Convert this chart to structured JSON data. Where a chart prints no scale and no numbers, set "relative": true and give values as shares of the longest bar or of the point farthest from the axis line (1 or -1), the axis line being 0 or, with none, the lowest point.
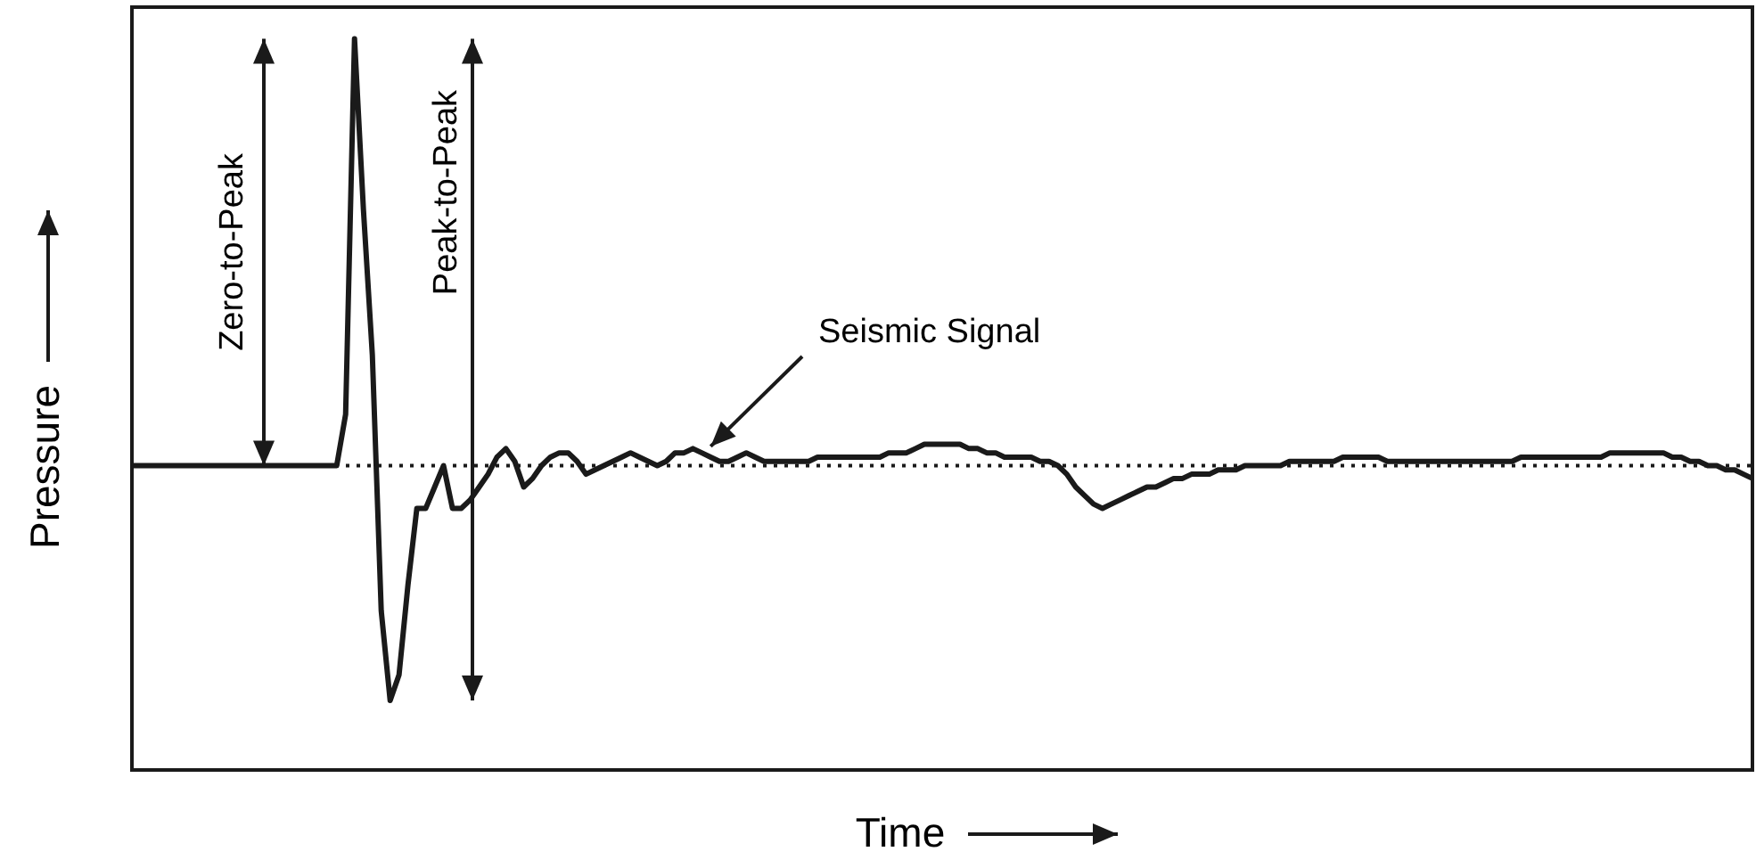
{
  "chart_data": {
    "type": "line",
    "relative": true,
    "xlabel": "Time",
    "ylabel": "Pressure",
    "annotations": [
      "Zero-to-Peak",
      "Peak-to-Peak",
      "Seismic Signal"
    ],
    "ref_lines": [
      {
        "axis": "y",
        "value": 0,
        "line_style": "dotted",
        "color": "#1a1a1a"
      }
    ],
    "categories": [
      null,
      null,
      null,
      null,
      null,
      null,
      null,
      null,
      null,
      null,
      null,
      null,
      null,
      null,
      null,
      null,
      null,
      null,
      null,
      null,
      null,
      null,
      null,
      null,
      null,
      null,
      null,
      null,
      null,
      null,
      null,
      null,
      null,
      null,
      null,
      null,
      null,
      null,
      null,
      null,
      null,
      null,
      null,
      null,
      null,
      null,
      null,
      null,
      null,
      null,
      null,
      null,
      null,
      null,
      null,
      null,
      null,
      null,
      null,
      null,
      null,
      null,
      null,
      null,
      null,
      null,
      null,
      null,
      null,
      null,
      null,
      null,
      null,
      null,
      null,
      null,
      null,
      null,
      null,
      null,
      null,
      null,
      null,
      null,
      null,
      null,
      null,
      null,
      null,
      null,
      null,
      null,
      null,
      null,
      null,
      null,
      null,
      null,
      null,
      null,
      null,
      null,
      null,
      null,
      null,
      null,
      null,
      null,
      null,
      null,
      null,
      null,
      null,
      null,
      null,
      null,
      null,
      null,
      null,
      null,
      null,
      null,
      null,
      null,
      null,
      null,
      null,
      null,
      null,
      null,
      null,
      null,
      null,
      null,
      null,
      null,
      null,
      null,
      null,
      null,
      null,
      null,
      null,
      null,
      null,
      null,
      null,
      null,
      null,
      null,
      null,
      null,
      null,
      null,
      null,
      null,
      null,
      null,
      null,
      null,
      null,
      null,
      null,
      null,
      null,
      null,
      null,
      null,
      null,
      null,
      null,
      null,
      null,
      null,
      null,
      null,
      null,
      null,
      null,
      null,
      null,
      null,
      null
    ],
    "series": [
      {
        "color": "#1a1a1a",
        "values": [
          0,
          0,
          0,
          0,
          0,
          0,
          0,
          0,
          0,
          0,
          0,
          0,
          0,
          0,
          0,
          0,
          0,
          0,
          0,
          0,
          0,
          0,
          0,
          0,
          0.12,
          1,
          0.6,
          0.26,
          -0.34,
          -0.55,
          -0.49,
          -0.28,
          -0.1,
          -0.1,
          -0.05,
          0,
          -0.1,
          -0.1,
          -0.08,
          -0.05,
          -0.02,
          0.02,
          0.04,
          0.01,
          -0.05,
          -0.03,
          0,
          0.02,
          0.03,
          0.03,
          0.01,
          -0.02,
          -0.01,
          0,
          0.01,
          0.02,
          0.03,
          0.02,
          0.01,
          0,
          0.01,
          0.03,
          0.03,
          0.04,
          0.03,
          0.02,
          0.01,
          0.01,
          0.02,
          0.03,
          0.02,
          0.01,
          0.01,
          0.01,
          0.01,
          0.01,
          0.01,
          0.02,
          0.02,
          0.02,
          0.02,
          0.02,
          0.02,
          0.02,
          0.02,
          0.03,
          0.03,
          0.03,
          0.04,
          0.05,
          0.05,
          0.05,
          0.05,
          0.05,
          0.04,
          0.04,
          0.03,
          0.03,
          0.02,
          0.02,
          0.02,
          0.02,
          0.01,
          0.01,
          0,
          -0.02,
          -0.05,
          -0.07,
          -0.09,
          -0.1,
          -0.09,
          -0.08,
          -0.07,
          -0.06,
          -0.05,
          -0.05,
          -0.04,
          -0.03,
          -0.03,
          -0.02,
          -0.02,
          -0.02,
          -0.01,
          -0.01,
          -0.01,
          0,
          0,
          0,
          0,
          0,
          0.01,
          0.01,
          0.01,
          0.01,
          0.01,
          0.01,
          0.02,
          0.02,
          0.02,
          0.02,
          0.02,
          0.01,
          0.01,
          0.01,
          0.01,
          0.01,
          0.01,
          0.01,
          0.01,
          0.01,
          0.01,
          0.01,
          0.01,
          0.01,
          0.01,
          0.01,
          0.02,
          0.02,
          0.02,
          0.02,
          0.02,
          0.02,
          0.02,
          0.02,
          0.02,
          0.02,
          0.03,
          0.03,
          0.03,
          0.03,
          0.03,
          0.03,
          0.03,
          0.02,
          0.02,
          0.01,
          0.01,
          0,
          0,
          -0.01,
          -0.01,
          -0.02,
          -0.03
        ]
      }
    ]
  }
}
